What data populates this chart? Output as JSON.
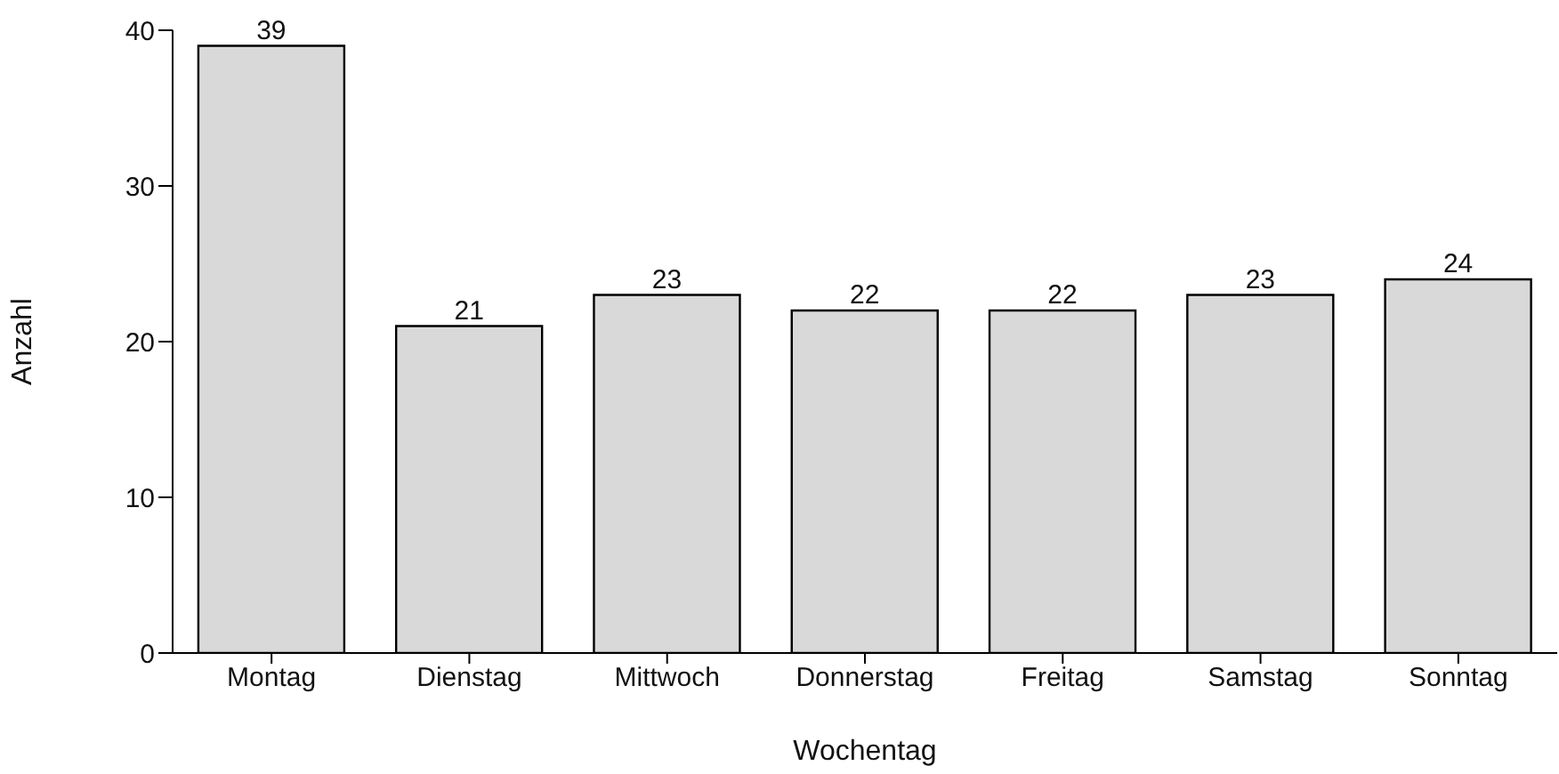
{
  "chart_data": {
    "type": "bar",
    "xlabel": "Wochentag",
    "ylabel": "Anzahl",
    "categories": [
      "Montag",
      "Dienstag",
      "Mittwoch",
      "Donnerstag",
      "Freitag",
      "Samstag",
      "Sonntag"
    ],
    "values": [
      39,
      21,
      23,
      22,
      22,
      23,
      24
    ],
    "color": "#d9d9d9",
    "ylim": [
      0,
      40
    ],
    "yticks": [
      0,
      10,
      20,
      30,
      40
    ],
    "data_labels": true
  }
}
